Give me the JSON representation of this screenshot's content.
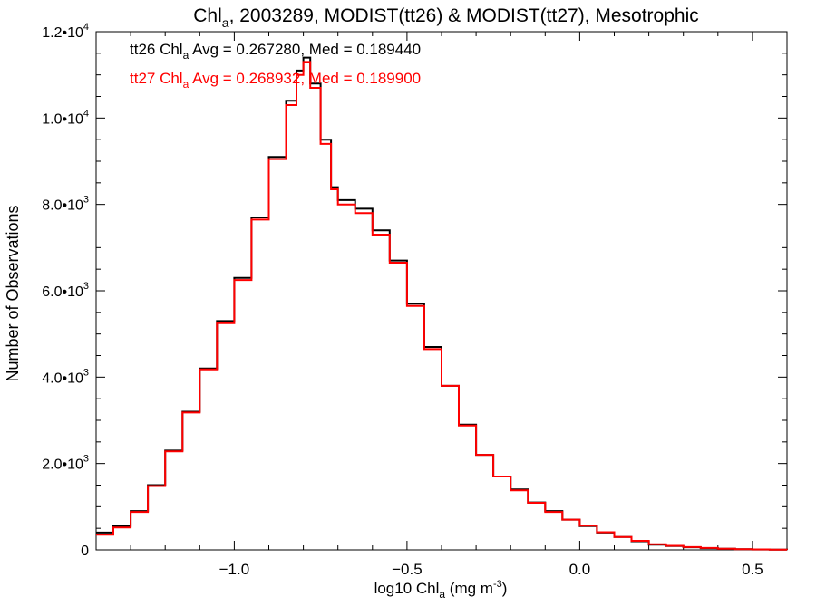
{
  "chart_data": {
    "type": "line",
    "title": "Chl",
    "title_sub": "a",
    "title_rest": ", 2003289, MODIST(tt26) & MODIST(tt27), Mesotrophic",
    "xlabel": "log10 Chl",
    "xlabel_sub": "a",
    "xlabel_rest": " (mg m",
    "xlabel_sup": "-3",
    "xlabel_end": ")",
    "ylabel": "Number of Observations",
    "xlim": [
      -1.4,
      0.6
    ],
    "ylim": [
      0,
      12000
    ],
    "x_ticks": [
      {
        "value": -1.0,
        "label": "−1.0"
      },
      {
        "value": -0.5,
        "label": "−0.5"
      },
      {
        "value": 0.0,
        "label": "0.0"
      },
      {
        "value": 0.5,
        "label": "0.5"
      }
    ],
    "y_ticks": [
      {
        "value": 0,
        "label": "0",
        "exp": ""
      },
      {
        "value": 2000,
        "label": "2.0•10",
        "exp": "3"
      },
      {
        "value": 4000,
        "label": "4.0•10",
        "exp": "3"
      },
      {
        "value": 6000,
        "label": "6.0•10",
        "exp": "3"
      },
      {
        "value": 8000,
        "label": "8.0•10",
        "exp": "3"
      },
      {
        "value": 10000,
        "label": "1.0•10",
        "exp": "4"
      },
      {
        "value": 12000,
        "label": "1.2•10",
        "exp": "4"
      }
    ],
    "annotations": [
      {
        "pre": "tt26 Chl",
        "sub": "a",
        "post": " Avg = 0.267280, Med = 0.189440",
        "color": "#000000"
      },
      {
        "pre": "tt27 Chl",
        "sub": "a",
        "post": " Avg = 0.268932, Med = 0.189900",
        "color": "#ff0000"
      }
    ],
    "series": [
      {
        "color": "#000000",
        "x": [
          -1.4,
          -1.35,
          -1.3,
          -1.25,
          -1.2,
          -1.15,
          -1.1,
          -1.05,
          -1.0,
          -0.95,
          -0.9,
          -0.85,
          -0.82,
          -0.8,
          -0.78,
          -0.75,
          -0.72,
          -0.7,
          -0.65,
          -0.6,
          -0.55,
          -0.5,
          -0.45,
          -0.4,
          -0.35,
          -0.3,
          -0.25,
          -0.2,
          -0.15,
          -0.1,
          -0.05,
          0.0,
          0.05,
          0.1,
          0.15,
          0.2,
          0.25,
          0.3,
          0.35,
          0.4,
          0.45,
          0.5,
          0.55,
          0.6
        ],
        "y": [
          400,
          550,
          900,
          1500,
          2300,
          3200,
          4200,
          5300,
          6300,
          7700,
          9100,
          10400,
          11100,
          11400,
          10800,
          9500,
          8400,
          8100,
          7900,
          7400,
          6700,
          5700,
          4700,
          3800,
          2900,
          2200,
          1700,
          1400,
          1100,
          900,
          700,
          550,
          400,
          300,
          200,
          120,
          90,
          60,
          40,
          25,
          15,
          8,
          5,
          3
        ]
      },
      {
        "color": "#ff0000",
        "x": [
          -1.4,
          -1.35,
          -1.3,
          -1.25,
          -1.2,
          -1.15,
          -1.1,
          -1.05,
          -1.0,
          -0.95,
          -0.9,
          -0.85,
          -0.82,
          -0.8,
          -0.78,
          -0.75,
          -0.72,
          -0.7,
          -0.65,
          -0.6,
          -0.55,
          -0.5,
          -0.45,
          -0.4,
          -0.35,
          -0.3,
          -0.25,
          -0.2,
          -0.15,
          -0.1,
          -0.05,
          0.0,
          0.05,
          0.1,
          0.15,
          0.2,
          0.25,
          0.3,
          0.35,
          0.4,
          0.45,
          0.5,
          0.55,
          0.6
        ],
        "y": [
          350,
          520,
          880,
          1480,
          2280,
          3180,
          4180,
          5250,
          6250,
          7650,
          9050,
          10300,
          11000,
          11300,
          10700,
          9400,
          8350,
          8000,
          7800,
          7300,
          6650,
          5650,
          4650,
          3800,
          2880,
          2200,
          1700,
          1380,
          1090,
          880,
          700,
          560,
          410,
          300,
          210,
          130,
          95,
          65,
          45,
          28,
          17,
          10,
          6,
          4
        ]
      }
    ]
  }
}
